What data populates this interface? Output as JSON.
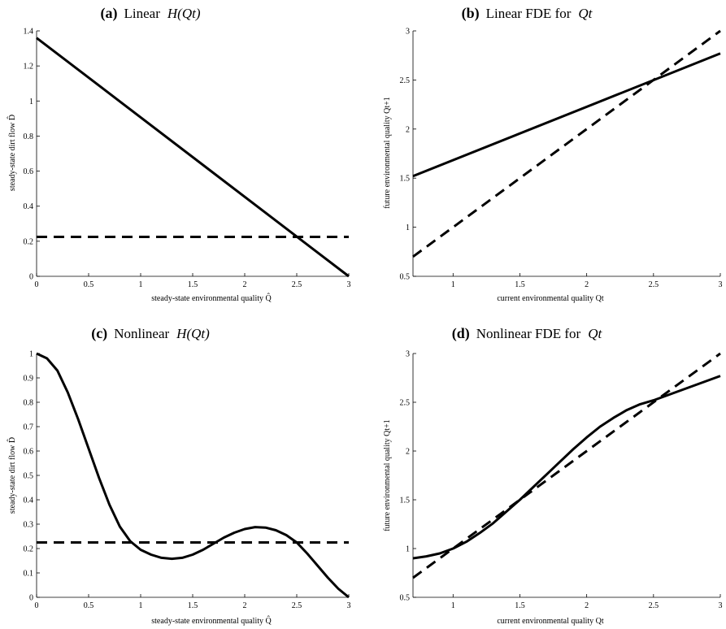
{
  "figure": {
    "panels": [
      {
        "id": "a",
        "title_label": "(a)",
        "title_text": "Linear",
        "title_math": "H(Qt)",
        "xlabel": "steady-state environmental quality Q̂",
        "ylabel": "steady-state dirt flow D̂",
        "line_color": "#000000"
      },
      {
        "id": "b",
        "title_label": "(b)",
        "title_text": "Linear FDE for",
        "title_math": "Qt",
        "xlabel": "current environmental quality Qt",
        "ylabel": "future environmental quality Qt+1",
        "line_color": "#000000"
      },
      {
        "id": "c",
        "title_label": "(c)",
        "title_text": "Nonlinear",
        "title_math": "H(Qt)",
        "xlabel": "steady-state environmental quality Q̂",
        "ylabel": "steady-state dirt flow D̂",
        "line_color": "#000000"
      },
      {
        "id": "d",
        "title_label": "(d)",
        "title_text": "Nonlinear FDE for",
        "title_math": "Qt",
        "xlabel": "current environmental quality Qt",
        "ylabel": "future environmental quality Qt+1",
        "line_color": "#000000"
      }
    ]
  },
  "chart_data": [
    {
      "type": "line",
      "title": "(a) Linear H(Qt)",
      "xlabel": "steady-state environmental quality Q̂",
      "ylabel": "steady-state dirt flow D̂",
      "xlim": [
        0,
        3
      ],
      "ylim": [
        0,
        1.4
      ],
      "xticks": [
        0,
        0.5,
        1,
        1.5,
        2,
        2.5,
        3
      ],
      "xtick_labels": [
        "0",
        "0.5",
        "1",
        "1.5",
        "2",
        "2.5",
        "3"
      ],
      "yticks": [
        0,
        0.2,
        0.4,
        0.6,
        0.8,
        1,
        1.2,
        1.4
      ],
      "ytick_labels": [
        "0",
        "0.2",
        "0.4",
        "0.6",
        "0.8",
        "1",
        "1.2",
        "1.4"
      ],
      "grid": false,
      "series": [
        {
          "style": "solid",
          "x": [
            0,
            3
          ],
          "y": [
            1.36,
            0
          ]
        },
        {
          "style": "dashed",
          "x": [
            0,
            3
          ],
          "y": [
            0.225,
            0.225
          ]
        }
      ]
    },
    {
      "type": "line",
      "title": "(b) Linear FDE for Qt",
      "xlabel": "current environmental quality Qt",
      "ylabel": "future environmental quality Qt+1",
      "xlim": [
        0.7,
        3
      ],
      "ylim": [
        0.5,
        3
      ],
      "xticks": [
        1,
        1.5,
        2,
        2.5,
        3
      ],
      "xtick_labels": [
        "1",
        "1.5",
        "2",
        "2.5",
        "3"
      ],
      "yticks": [
        0.5,
        1,
        1.5,
        2,
        2.5,
        3
      ],
      "ytick_labels": [
        "0.5",
        "1",
        "1.5",
        "2",
        "2.5",
        "3"
      ],
      "grid": false,
      "series": [
        {
          "style": "solid",
          "x": [
            0.7,
            3
          ],
          "y": [
            1.52,
            2.77
          ]
        },
        {
          "style": "dashed",
          "x": [
            0.7,
            3
          ],
          "y": [
            0.7,
            3.0
          ]
        }
      ]
    },
    {
      "type": "line",
      "title": "(c) Nonlinear H(Qt)",
      "xlabel": "steady-state environmental quality Q̂",
      "ylabel": "steady-state dirt flow D̂",
      "xlim": [
        0,
        3
      ],
      "ylim": [
        0,
        1
      ],
      "xticks": [
        0,
        0.5,
        1,
        1.5,
        2,
        2.5,
        3
      ],
      "xtick_labels": [
        "0",
        "0.5",
        "1",
        "1.5",
        "2",
        "2.5",
        "3"
      ],
      "yticks": [
        0,
        0.1,
        0.2,
        0.3,
        0.4,
        0.5,
        0.6,
        0.7,
        0.8,
        0.9,
        1
      ],
      "ytick_labels": [
        "0",
        "0.1",
        "0.2",
        "0.3",
        "0.4",
        "0.5",
        "0.6",
        "0.7",
        "0.8",
        "0.9",
        "1"
      ],
      "grid": false,
      "series": [
        {
          "style": "solid",
          "x": [
            0,
            0.1,
            0.2,
            0.3,
            0.4,
            0.5,
            0.6,
            0.7,
            0.8,
            0.9,
            1.0,
            1.1,
            1.2,
            1.3,
            1.4,
            1.5,
            1.6,
            1.7,
            1.8,
            1.9,
            2.0,
            2.1,
            2.2,
            2.3,
            2.4,
            2.5,
            2.6,
            2.7,
            2.8,
            2.9,
            3.0
          ],
          "y": [
            1.0,
            0.98,
            0.93,
            0.84,
            0.73,
            0.61,
            0.49,
            0.38,
            0.29,
            0.23,
            0.195,
            0.175,
            0.162,
            0.158,
            0.162,
            0.175,
            0.195,
            0.22,
            0.245,
            0.265,
            0.28,
            0.288,
            0.286,
            0.275,
            0.255,
            0.225,
            0.18,
            0.13,
            0.08,
            0.035,
            0.0
          ]
        },
        {
          "style": "dashed",
          "x": [
            0,
            3
          ],
          "y": [
            0.225,
            0.225
          ]
        }
      ]
    },
    {
      "type": "line",
      "title": "(d) Nonlinear FDE for Qt",
      "xlabel": "current environmental quality Qt",
      "ylabel": "future environmental quality Qt+1",
      "xlim": [
        0.7,
        3
      ],
      "ylim": [
        0.5,
        3
      ],
      "xticks": [
        1,
        1.5,
        2,
        2.5,
        3
      ],
      "xtick_labels": [
        "1",
        "1.5",
        "2",
        "2.5",
        "3"
      ],
      "yticks": [
        0.5,
        1,
        1.5,
        2,
        2.5,
        3
      ],
      "ytick_labels": [
        "0.5",
        "1",
        "1.5",
        "2",
        "2.5",
        "3"
      ],
      "grid": false,
      "series": [
        {
          "style": "solid",
          "x": [
            0.7,
            0.8,
            0.9,
            1.0,
            1.1,
            1.2,
            1.3,
            1.4,
            1.5,
            1.6,
            1.7,
            1.8,
            1.9,
            2.0,
            2.1,
            2.2,
            2.3,
            2.4,
            2.5,
            2.6,
            2.7,
            2.8,
            2.9,
            3.0
          ],
          "y": [
            0.9,
            0.92,
            0.95,
            1.0,
            1.07,
            1.16,
            1.26,
            1.38,
            1.5,
            1.63,
            1.76,
            1.89,
            2.02,
            2.14,
            2.25,
            2.34,
            2.42,
            2.48,
            2.52,
            2.57,
            2.62,
            2.67,
            2.72,
            2.77
          ]
        },
        {
          "style": "dashed",
          "x": [
            0.7,
            3
          ],
          "y": [
            0.7,
            3.0
          ]
        }
      ]
    }
  ]
}
